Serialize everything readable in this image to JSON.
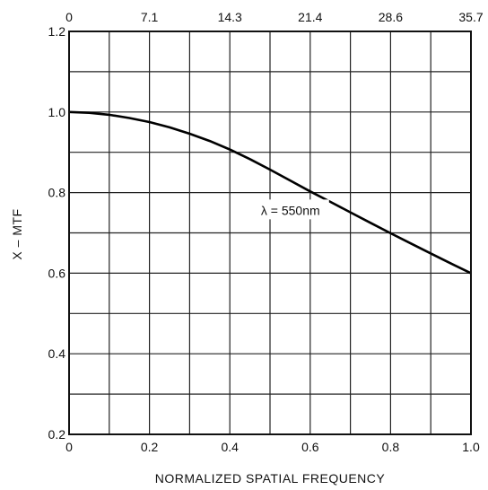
{
  "chart_data": {
    "type": "line",
    "xlabel": "NORMALIZED SPATIAL FREQUENCY",
    "ylabel": "X – MTF",
    "xlim": [
      0,
      1.0
    ],
    "ylim": [
      0.2,
      1.2
    ],
    "x_ticks": [
      "0",
      "0.2",
      "0.4",
      "0.6",
      "0.8",
      "1.0"
    ],
    "y_ticks": [
      "0.2",
      "0.4",
      "0.6",
      "0.8",
      "1.0",
      "1.2"
    ],
    "top_axis_ticks": [
      "0",
      "7.1",
      "14.3",
      "21.4",
      "28.6",
      "35.7"
    ],
    "grid": true,
    "series": [
      {
        "name": "λ = 550nm",
        "x": [
          0,
          0.05,
          0.1,
          0.15,
          0.2,
          0.25,
          0.3,
          0.35,
          0.4,
          0.45,
          0.5,
          0.55,
          0.6,
          0.65,
          0.7,
          0.75,
          0.8,
          0.85,
          0.9,
          0.95,
          1.0
        ],
        "y": [
          1.0,
          0.998,
          0.993,
          0.985,
          0.975,
          0.962,
          0.946,
          0.928,
          0.907,
          0.883,
          0.857,
          0.83,
          0.803,
          0.777,
          0.751,
          0.725,
          0.699,
          0.674,
          0.649,
          0.624,
          0.6
        ]
      }
    ],
    "annotations": [
      {
        "text": "λ = 550nm",
        "x": 0.6,
        "y": 0.756
      }
    ]
  }
}
